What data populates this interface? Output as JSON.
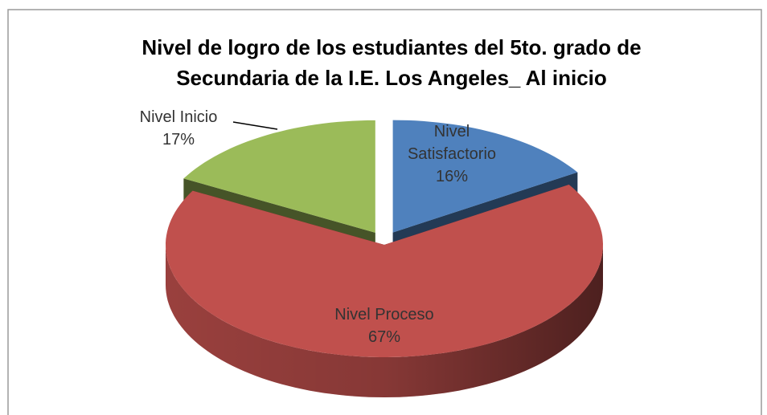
{
  "chart_data": {
    "type": "pie3d",
    "title": "Nivel de logro de los estudiantes del 5to. grado de Secundaria de la I.E. Los Angeles_ Al inicio",
    "categories": [
      "Nivel Satisfactorio",
      "Nivel Proceso",
      "Nivel Inicio"
    ],
    "values": [
      16,
      67,
      17
    ],
    "value_labels": [
      "16%",
      "67%",
      "17%"
    ],
    "colors": [
      "#4f81bd",
      "#c0504d",
      "#9bbb59"
    ],
    "exploded": [
      true,
      false,
      true
    ]
  }
}
